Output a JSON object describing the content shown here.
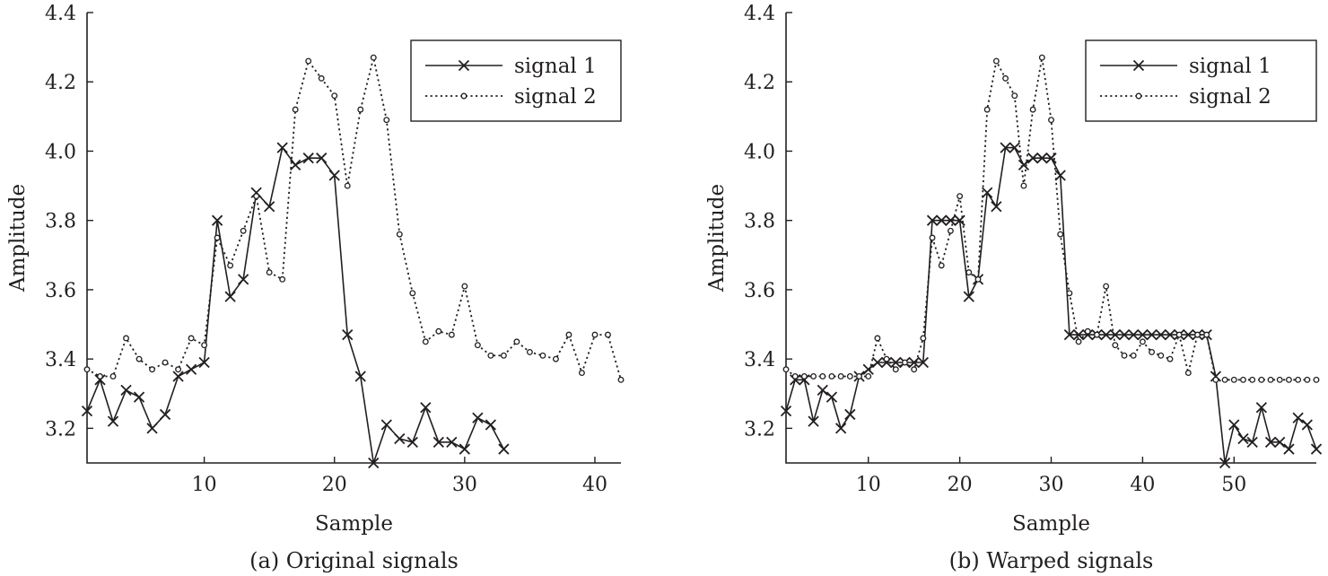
{
  "chart_data": [
    {
      "type": "line",
      "caption": "(a) Original signals",
      "xlabel": "Sample",
      "ylabel": "Amplitude",
      "xlim": [
        1,
        42
      ],
      "ylim": [
        3.1,
        4.4
      ],
      "xticks": [
        10,
        20,
        30,
        40
      ],
      "yticks": [
        3.2,
        3.4,
        3.6,
        3.8,
        4.0,
        4.2,
        4.4
      ],
      "xtick_labels": [
        "10",
        "20",
        "30",
        "40"
      ],
      "ytick_labels": [
        "3.2",
        "3.4",
        "3.6",
        "3.8",
        "4.0",
        "4.2",
        "4.4"
      ],
      "legend_position": "top-right",
      "series": [
        {
          "name": "signal 1",
          "style": "solid-x",
          "x": [
            1,
            2,
            3,
            4,
            5,
            6,
            7,
            8,
            9,
            10,
            11,
            12,
            13,
            14,
            15,
            16,
            17,
            18,
            19,
            20,
            21,
            22,
            23,
            24,
            25,
            26,
            27,
            28,
            29,
            30,
            31,
            32,
            33
          ],
          "values": [
            3.25,
            3.34,
            3.22,
            3.31,
            3.29,
            3.2,
            3.24,
            3.35,
            3.37,
            3.39,
            3.8,
            3.58,
            3.63,
            3.88,
            3.84,
            4.01,
            3.96,
            3.98,
            3.98,
            3.93,
            3.47,
            3.35,
            3.1,
            3.21,
            3.17,
            3.16,
            3.26,
            3.16,
            3.16,
            3.14,
            3.23,
            3.21,
            3.14
          ]
        },
        {
          "name": "signal 2",
          "style": "dotted-o",
          "x": [
            1,
            2,
            3,
            4,
            5,
            6,
            7,
            8,
            9,
            10,
            11,
            12,
            13,
            14,
            15,
            16,
            17,
            18,
            19,
            20,
            21,
            22,
            23,
            24,
            25,
            26,
            27,
            28,
            29,
            30,
            31,
            32,
            33,
            34,
            35,
            36,
            37,
            38,
            39,
            40,
            41,
            42
          ],
          "values": [
            3.37,
            3.35,
            3.35,
            3.46,
            3.4,
            3.37,
            3.39,
            3.37,
            3.46,
            3.44,
            3.75,
            3.67,
            3.77,
            3.87,
            3.65,
            3.63,
            4.12,
            4.26,
            4.21,
            4.16,
            3.9,
            4.12,
            4.27,
            4.09,
            3.76,
            3.59,
            3.45,
            3.48,
            3.47,
            3.61,
            3.44,
            3.41,
            3.41,
            3.45,
            3.42,
            3.41,
            3.4,
            3.47,
            3.36,
            3.47,
            3.47,
            3.34
          ]
        }
      ]
    },
    {
      "type": "line",
      "caption": "(b) Warped signals",
      "xlabel": "Sample",
      "ylabel": "Amplitude",
      "xlim": [
        1,
        59
      ],
      "ylim": [
        3.1,
        4.4
      ],
      "xticks": [
        10,
        20,
        30,
        40,
        50
      ],
      "yticks": [
        3.2,
        3.4,
        3.6,
        3.8,
        4.0,
        4.2,
        4.4
      ],
      "xtick_labels": [
        "10",
        "20",
        "30",
        "40",
        "50"
      ],
      "ytick_labels": [
        "3.2",
        "3.4",
        "3.6",
        "3.8",
        "4.0",
        "4.2",
        "4.4"
      ],
      "legend_position": "top-right",
      "series": [
        {
          "name": "signal 1",
          "style": "solid-x",
          "x": [
            1,
            2,
            3,
            4,
            5,
            6,
            7,
            8,
            9,
            10,
            11,
            12,
            13,
            14,
            15,
            16,
            17,
            18,
            19,
            20,
            21,
            22,
            23,
            24,
            25,
            26,
            27,
            28,
            29,
            30,
            31,
            32,
            33,
            34,
            35,
            36,
            37,
            38,
            39,
            40,
            41,
            42,
            43,
            44,
            45,
            46,
            47,
            48,
            49,
            50,
            51,
            52,
            53,
            54,
            55,
            56,
            57,
            58,
            59
          ],
          "values": [
            3.25,
            3.34,
            3.34,
            3.22,
            3.31,
            3.29,
            3.2,
            3.24,
            3.35,
            3.37,
            3.39,
            3.39,
            3.39,
            3.39,
            3.39,
            3.39,
            3.8,
            3.8,
            3.8,
            3.8,
            3.58,
            3.63,
            3.88,
            3.84,
            4.01,
            4.01,
            3.96,
            3.98,
            3.98,
            3.98,
            3.93,
            3.47,
            3.47,
            3.47,
            3.47,
            3.47,
            3.47,
            3.47,
            3.47,
            3.47,
            3.47,
            3.47,
            3.47,
            3.47,
            3.47,
            3.47,
            3.47,
            3.35,
            3.1,
            3.21,
            3.17,
            3.16,
            3.26,
            3.16,
            3.16,
            3.14,
            3.23,
            3.21,
            3.14
          ]
        },
        {
          "name": "signal 2",
          "style": "dotted-o",
          "x": [
            1,
            2,
            3,
            4,
            5,
            6,
            7,
            8,
            9,
            10,
            11,
            12,
            13,
            14,
            15,
            16,
            17,
            18,
            19,
            20,
            21,
            22,
            23,
            24,
            25,
            26,
            27,
            28,
            29,
            30,
            31,
            32,
            33,
            34,
            35,
            36,
            37,
            38,
            39,
            40,
            41,
            42,
            43,
            44,
            45,
            46,
            47,
            48,
            49,
            50,
            51,
            52,
            53,
            54,
            55,
            56,
            57,
            58,
            59
          ],
          "values": [
            3.37,
            3.35,
            3.35,
            3.35,
            3.35,
            3.35,
            3.35,
            3.35,
            3.35,
            3.35,
            3.46,
            3.4,
            3.37,
            3.39,
            3.37,
            3.46,
            3.75,
            3.67,
            3.77,
            3.87,
            3.65,
            3.63,
            4.12,
            4.26,
            4.21,
            4.16,
            3.9,
            4.12,
            4.27,
            4.09,
            3.76,
            3.59,
            3.45,
            3.48,
            3.47,
            3.61,
            3.44,
            3.41,
            3.41,
            3.45,
            3.42,
            3.41,
            3.4,
            3.47,
            3.36,
            3.47,
            3.47,
            3.34,
            3.34,
            3.34,
            3.34,
            3.34,
            3.34,
            3.34,
            3.34,
            3.34,
            3.34,
            3.34,
            3.34
          ]
        }
      ]
    }
  ]
}
